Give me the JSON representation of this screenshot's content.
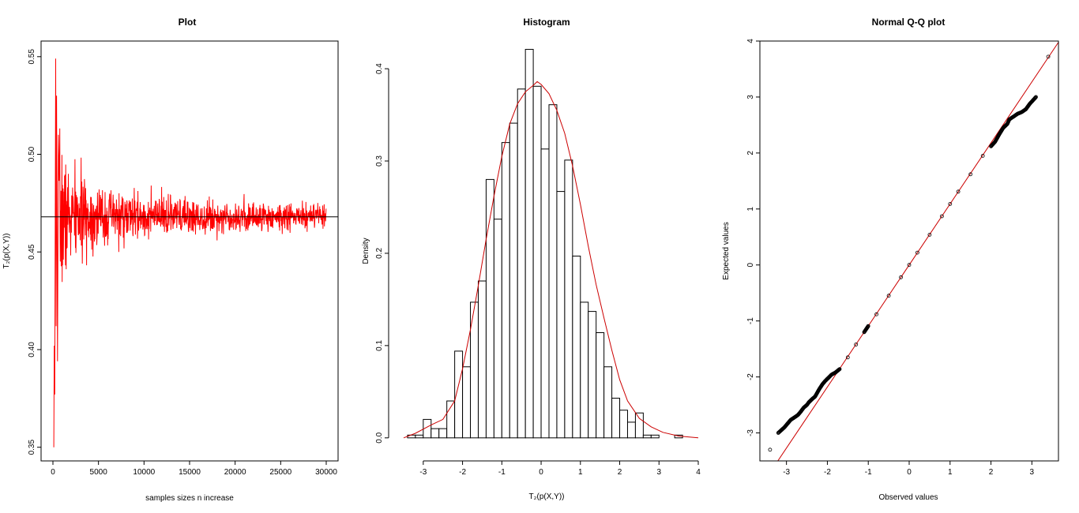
{
  "chart_data": [
    {
      "type": "line",
      "title": "Plot",
      "xlabel": "samples sizes n increase",
      "ylabel": "T₂(p(X,Y))",
      "xlim": [
        -1300,
        31300
      ],
      "ylim": [
        0.343,
        0.558
      ],
      "xticks": [
        0,
        5000,
        10000,
        15000,
        20000,
        25000,
        30000
      ],
      "yticks": [
        0.35,
        0.4,
        0.45,
        0.5,
        0.55
      ],
      "xtick_labels": [
        "0",
        "5000",
        "10000",
        "15000",
        "20000",
        "25000",
        "30000"
      ],
      "ytick_labels": [
        "0.35",
        "0.40",
        "0.45",
        "0.50",
        "0.55"
      ],
      "series": [
        {
          "color": "#ff0000",
          "description": "simulated T2 values converging with increasing sample size",
          "n_start": 100,
          "n_end": 30000,
          "center": 0.468,
          "key_points": [
            [
              100,
              0.35
            ],
            [
              150,
              0.402
            ],
            [
              200,
              0.377
            ],
            [
              300,
              0.549
            ],
            [
              350,
              0.412
            ],
            [
              400,
              0.53
            ],
            [
              500,
              0.394
            ],
            [
              600,
              0.51
            ],
            [
              800,
              0.428
            ],
            [
              1000,
              0.509
            ],
            [
              2000,
              0.437
            ],
            [
              2500,
              0.497
            ],
            [
              5000,
              0.449
            ],
            [
              5000,
              0.488
            ],
            [
              10000,
              0.484
            ],
            [
              15000,
              0.483
            ],
            [
              20000,
              0.48
            ],
            [
              25000,
              0.477
            ],
            [
              30000,
              0.476
            ],
            [
              30000,
              0.462
            ]
          ]
        }
      ],
      "reference_line": {
        "y": 0.468,
        "color": "#000000"
      }
    },
    {
      "type": "bar",
      "title": "Histogram",
      "xlabel": "T₂(p(X,Y))",
      "ylabel": "Density",
      "xlim": [
        -3.6,
        4.0
      ],
      "ylim": [
        -0.013,
        0.43
      ],
      "xticks": [
        -3,
        -2,
        -1,
        0,
        1,
        2,
        3,
        4
      ],
      "yticks": [
        0.0,
        0.1,
        0.2,
        0.3,
        0.4
      ],
      "xtick_labels": [
        "-3",
        "-2",
        "-1",
        "0",
        "1",
        "2",
        "3",
        "4"
      ],
      "ytick_labels": [
        "0.0",
        "0.1",
        "0.2",
        "0.3",
        "0.4"
      ],
      "bin_start": -3.4,
      "bin_width": 0.2,
      "values": [
        0.003,
        0.003,
        0.02,
        0.01,
        0.01,
        0.04,
        0.094,
        0.077,
        0.147,
        0.17,
        0.28,
        0.237,
        0.32,
        0.341,
        0.378,
        0.421,
        0.381,
        0.313,
        0.361,
        0.267,
        0.301,
        0.197,
        0.147,
        0.137,
        0.114,
        0.077,
        0.043,
        0.03,
        0.017,
        0.027,
        0.003,
        0.003,
        0.0,
        0.0,
        0.003
      ],
      "density_curve": {
        "color": "#cc0000",
        "points": [
          [
            -3.5,
            0.0
          ],
          [
            -3.2,
            0.005
          ],
          [
            -2.8,
            0.014
          ],
          [
            -2.5,
            0.02
          ],
          [
            -2.2,
            0.04
          ],
          [
            -2.0,
            0.075
          ],
          [
            -1.8,
            0.117
          ],
          [
            -1.6,
            0.165
          ],
          [
            -1.4,
            0.215
          ],
          [
            -1.2,
            0.262
          ],
          [
            -1.0,
            0.305
          ],
          [
            -0.8,
            0.34
          ],
          [
            -0.6,
            0.362
          ],
          [
            -0.4,
            0.375
          ],
          [
            -0.2,
            0.382
          ],
          [
            -0.1,
            0.386
          ],
          [
            0.0,
            0.383
          ],
          [
            0.2,
            0.373
          ],
          [
            0.4,
            0.355
          ],
          [
            0.6,
            0.33
          ],
          [
            0.8,
            0.295
          ],
          [
            1.0,
            0.253
          ],
          [
            1.2,
            0.208
          ],
          [
            1.4,
            0.166
          ],
          [
            1.6,
            0.13
          ],
          [
            1.8,
            0.095
          ],
          [
            2.0,
            0.063
          ],
          [
            2.2,
            0.04
          ],
          [
            2.5,
            0.021
          ],
          [
            2.8,
            0.012
          ],
          [
            3.1,
            0.006
          ],
          [
            3.5,
            0.002
          ],
          [
            4.0,
            0.0
          ]
        ]
      }
    },
    {
      "type": "scatter",
      "title": "Normal Q-Q plot",
      "xlabel": "Observed values",
      "ylabel": "Expected values",
      "xlim": [
        -3.65,
        3.65
      ],
      "ylim": [
        -3.5,
        4.0
      ],
      "xticks": [
        -3,
        -2,
        -1,
        0,
        1,
        2,
        3
      ],
      "yticks": [
        -3,
        -2,
        -1,
        0,
        1,
        2,
        3,
        4
      ],
      "xtick_labels": [
        "-3",
        "-2",
        "-1",
        "0",
        "1",
        "2",
        "3"
      ],
      "ytick_labels": [
        "-3",
        "-2",
        "-1",
        "0",
        "1",
        "2",
        "3",
        "4"
      ],
      "reference_line": {
        "color": "#cc0000",
        "slope": 1.09,
        "intercept": 0.0
      },
      "points": [
        [
          -3.4,
          -3.3
        ],
        [
          -3.2,
          -3.0
        ],
        [
          -3.05,
          -2.9
        ],
        [
          -2.9,
          -2.77
        ],
        [
          -2.8,
          -2.72
        ],
        [
          -2.72,
          -2.68
        ],
        [
          -2.65,
          -2.62
        ],
        [
          -2.58,
          -2.55
        ],
        [
          -2.5,
          -2.5
        ],
        [
          -2.45,
          -2.45
        ],
        [
          -2.38,
          -2.4
        ],
        [
          -2.3,
          -2.35
        ],
        [
          -2.2,
          -2.22
        ],
        [
          -2.12,
          -2.13
        ],
        [
          -2.05,
          -2.07
        ],
        [
          -1.98,
          -2.02
        ],
        [
          -1.9,
          -1.96
        ],
        [
          -1.8,
          -1.92
        ],
        [
          -1.7,
          -1.86
        ],
        [
          -1.5,
          -1.65
        ],
        [
          -1.3,
          -1.42
        ],
        [
          -1.1,
          -1.2
        ],
        [
          -1.0,
          -1.09
        ],
        [
          -0.8,
          -0.88
        ],
        [
          -0.5,
          -0.55
        ],
        [
          -0.2,
          -0.22
        ],
        [
          0.0,
          0.0
        ],
        [
          0.2,
          0.22
        ],
        [
          0.5,
          0.54
        ],
        [
          0.8,
          0.87
        ],
        [
          1.0,
          1.09
        ],
        [
          1.2,
          1.31
        ],
        [
          1.5,
          1.62
        ],
        [
          1.8,
          1.95
        ],
        [
          2.0,
          2.12
        ],
        [
          2.1,
          2.2
        ],
        [
          2.2,
          2.33
        ],
        [
          2.3,
          2.45
        ],
        [
          2.4,
          2.52
        ],
        [
          2.45,
          2.6
        ],
        [
          2.55,
          2.65
        ],
        [
          2.65,
          2.7
        ],
        [
          2.75,
          2.73
        ],
        [
          2.85,
          2.78
        ],
        [
          2.95,
          2.88
        ],
        [
          3.1,
          3.0
        ],
        [
          3.4,
          3.72
        ]
      ]
    }
  ]
}
